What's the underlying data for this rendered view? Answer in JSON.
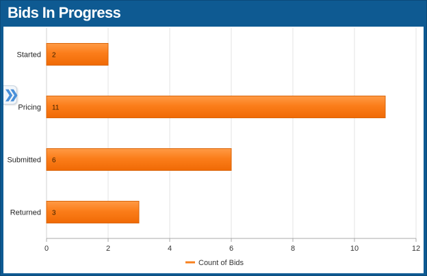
{
  "panel": {
    "title": "Bids In Progress"
  },
  "icons": {
    "collapse": "double-chevron-right-icon"
  },
  "chart_data": {
    "type": "bar",
    "orientation": "horizontal",
    "title": "",
    "xlabel": "",
    "ylabel": "",
    "categories": [
      "Started",
      "Pricing",
      "Submitted",
      "Returned"
    ],
    "series": [
      {
        "name": "Count of Bids",
        "values": [
          2,
          11,
          6,
          3
        ],
        "color": "#f7801e"
      }
    ],
    "xlim": [
      0,
      12
    ],
    "xticks": [
      0,
      2,
      4,
      6,
      8,
      10,
      12
    ],
    "grid": true,
    "legend": "bottom-center",
    "data_labels": true
  }
}
